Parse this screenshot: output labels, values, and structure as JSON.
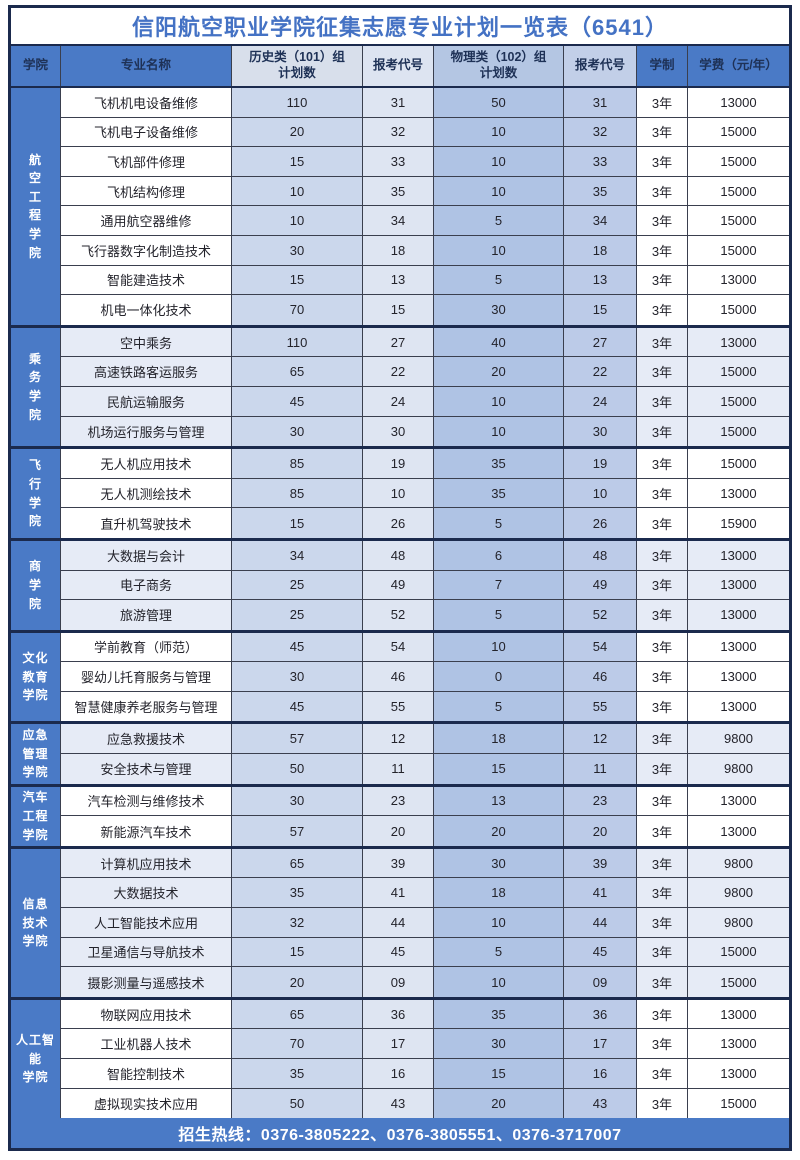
{
  "title": "信阳航空职业学院征集志愿专业计划一览表（6541）",
  "header": {
    "college": "学院",
    "major": "专业名称",
    "hist_plan": "历史类（101）组\n计划数",
    "code1": "报考代号",
    "phys_plan": "物理类（102）组\n计划数",
    "code2": "报考代号",
    "years": "学制",
    "fee": "学费（元/年）"
  },
  "sections": [
    {
      "college": "航空工程学院",
      "college_display": "航\n空\n工\n程\n学\n院",
      "rows": [
        {
          "major": "飞机机电设备维修",
          "hist_plan": "110",
          "code1": "31",
          "phys_plan": "50",
          "code2": "31",
          "years": "3年",
          "fee": "13000"
        },
        {
          "major": "飞机电子设备维修",
          "hist_plan": "20",
          "code1": "32",
          "phys_plan": "10",
          "code2": "32",
          "years": "3年",
          "fee": "15000"
        },
        {
          "major": "飞机部件修理",
          "hist_plan": "15",
          "code1": "33",
          "phys_plan": "10",
          "code2": "33",
          "years": "3年",
          "fee": "15000"
        },
        {
          "major": "飞机结构修理",
          "hist_plan": "10",
          "code1": "35",
          "phys_plan": "10",
          "code2": "35",
          "years": "3年",
          "fee": "15000"
        },
        {
          "major": "通用航空器维修",
          "hist_plan": "10",
          "code1": "34",
          "phys_plan": "5",
          "code2": "34",
          "years": "3年",
          "fee": "15000"
        },
        {
          "major": "飞行器数字化制造技术",
          "hist_plan": "30",
          "code1": "18",
          "phys_plan": "10",
          "code2": "18",
          "years": "3年",
          "fee": "15000"
        },
        {
          "major": "智能建造技术",
          "hist_plan": "15",
          "code1": "13",
          "phys_plan": "5",
          "code2": "13",
          "years": "3年",
          "fee": "13000"
        },
        {
          "major": "机电一体化技术",
          "hist_plan": "70",
          "code1": "15",
          "phys_plan": "30",
          "code2": "15",
          "years": "3年",
          "fee": "15000"
        }
      ]
    },
    {
      "college": "乘务学院",
      "college_display": "乘\n务\n学\n院",
      "rows": [
        {
          "major": "空中乘务",
          "hist_plan": "110",
          "code1": "27",
          "phys_plan": "40",
          "code2": "27",
          "years": "3年",
          "fee": "13000"
        },
        {
          "major": "高速铁路客运服务",
          "hist_plan": "65",
          "code1": "22",
          "phys_plan": "20",
          "code2": "22",
          "years": "3年",
          "fee": "15000"
        },
        {
          "major": "民航运输服务",
          "hist_plan": "45",
          "code1": "24",
          "phys_plan": "10",
          "code2": "24",
          "years": "3年",
          "fee": "15000"
        },
        {
          "major": "机场运行服务与管理",
          "hist_plan": "30",
          "code1": "30",
          "phys_plan": "10",
          "code2": "30",
          "years": "3年",
          "fee": "15000"
        }
      ]
    },
    {
      "college": "飞行学院",
      "college_display": "飞\n行\n学\n院",
      "rows": [
        {
          "major": "无人机应用技术",
          "hist_plan": "85",
          "code1": "19",
          "phys_plan": "35",
          "code2": "19",
          "years": "3年",
          "fee": "15000"
        },
        {
          "major": "无人机测绘技术",
          "hist_plan": "85",
          "code1": "10",
          "phys_plan": "35",
          "code2": "10",
          "years": "3年",
          "fee": "13000"
        },
        {
          "major": "直升机驾驶技术",
          "hist_plan": "15",
          "code1": "26",
          "phys_plan": "5",
          "code2": "26",
          "years": "3年",
          "fee": "15900"
        }
      ]
    },
    {
      "college": "商学院",
      "college_display": "商\n学\n院",
      "rows": [
        {
          "major": "大数据与会计",
          "hist_plan": "34",
          "code1": "48",
          "phys_plan": "6",
          "code2": "48",
          "years": "3年",
          "fee": "13000"
        },
        {
          "major": "电子商务",
          "hist_plan": "25",
          "code1": "49",
          "phys_plan": "7",
          "code2": "49",
          "years": "3年",
          "fee": "13000"
        },
        {
          "major": "旅游管理",
          "hist_plan": "25",
          "code1": "52",
          "phys_plan": "5",
          "code2": "52",
          "years": "3年",
          "fee": "13000"
        }
      ]
    },
    {
      "college": "文化教育学院",
      "college_display": "文化\n教育\n学院",
      "rows": [
        {
          "major": "学前教育（师范）",
          "hist_plan": "45",
          "code1": "54",
          "phys_plan": "10",
          "code2": "54",
          "years": "3年",
          "fee": "13000"
        },
        {
          "major": "婴幼儿托育服务与管理",
          "hist_plan": "30",
          "code1": "46",
          "phys_plan": "0",
          "code2": "46",
          "years": "3年",
          "fee": "13000"
        },
        {
          "major": "智慧健康养老服务与管理",
          "hist_plan": "45",
          "code1": "55",
          "phys_plan": "5",
          "code2": "55",
          "years": "3年",
          "fee": "13000"
        }
      ]
    },
    {
      "college": "应急管理学院",
      "college_display": "应急\n管理\n学院",
      "rows": [
        {
          "major": "应急救援技术",
          "hist_plan": "57",
          "code1": "12",
          "phys_plan": "18",
          "code2": "12",
          "years": "3年",
          "fee": "9800"
        },
        {
          "major": "安全技术与管理",
          "hist_plan": "50",
          "code1": "11",
          "phys_plan": "15",
          "code2": "11",
          "years": "3年",
          "fee": "9800"
        }
      ]
    },
    {
      "college": "汽车工程学院",
      "college_display": "汽车\n工程\n学院",
      "rows": [
        {
          "major": "汽车检测与维修技术",
          "hist_plan": "30",
          "code1": "23",
          "phys_plan": "13",
          "code2": "23",
          "years": "3年",
          "fee": "13000"
        },
        {
          "major": "新能源汽车技术",
          "hist_plan": "57",
          "code1": "20",
          "phys_plan": "20",
          "code2": "20",
          "years": "3年",
          "fee": "13000"
        }
      ]
    },
    {
      "college": "信息技术学院",
      "college_display": "信息\n技术\n学院",
      "rows": [
        {
          "major": "计算机应用技术",
          "hist_plan": "65",
          "code1": "39",
          "phys_plan": "30",
          "code2": "39",
          "years": "3年",
          "fee": "9800"
        },
        {
          "major": "大数据技术",
          "hist_plan": "35",
          "code1": "41",
          "phys_plan": "18",
          "code2": "41",
          "years": "3年",
          "fee": "9800"
        },
        {
          "major": "人工智能技术应用",
          "hist_plan": "32",
          "code1": "44",
          "phys_plan": "10",
          "code2": "44",
          "years": "3年",
          "fee": "9800"
        },
        {
          "major": "卫星通信与导航技术",
          "hist_plan": "15",
          "code1": "45",
          "phys_plan": "5",
          "code2": "45",
          "years": "3年",
          "fee": "15000"
        },
        {
          "major": "摄影测量与遥感技术",
          "hist_plan": "20",
          "code1": "09",
          "phys_plan": "10",
          "code2": "09",
          "years": "3年",
          "fee": "15000"
        }
      ]
    },
    {
      "college": "人工智能学院",
      "college_display": "人工智能\n学院",
      "rows": [
        {
          "major": "物联网应用技术",
          "hist_plan": "65",
          "code1": "36",
          "phys_plan": "35",
          "code2": "36",
          "years": "3年",
          "fee": "13000"
        },
        {
          "major": "工业机器人技术",
          "hist_plan": "70",
          "code1": "17",
          "phys_plan": "30",
          "code2": "17",
          "years": "3年",
          "fee": "13000"
        },
        {
          "major": "智能控制技术",
          "hist_plan": "35",
          "code1": "16",
          "phys_plan": "15",
          "code2": "16",
          "years": "3年",
          "fee": "13000"
        },
        {
          "major": "虚拟现实技术应用",
          "hist_plan": "50",
          "code1": "43",
          "phys_plan": "20",
          "code2": "43",
          "years": "3年",
          "fee": "15000"
        }
      ]
    }
  ],
  "footer": "招生热线：0376-3805222、0376-3805551、0376-3717007",
  "colors": {
    "accent_blue": "#4a7ac6",
    "title_text_blue": "#4472c4",
    "frame_navy": "#1b2a4d",
    "hist_col_tint": "#cbd7ec",
    "code1_col_tint": "#dee5f2",
    "phys_col_tint": "#afc3e4",
    "code2_col_tint": "#bccbe8",
    "tinted_section_bg": "#e6ebf6",
    "header_hist_bg": "#d8dfeb",
    "header_phys_bg": "#b4c6e3"
  }
}
